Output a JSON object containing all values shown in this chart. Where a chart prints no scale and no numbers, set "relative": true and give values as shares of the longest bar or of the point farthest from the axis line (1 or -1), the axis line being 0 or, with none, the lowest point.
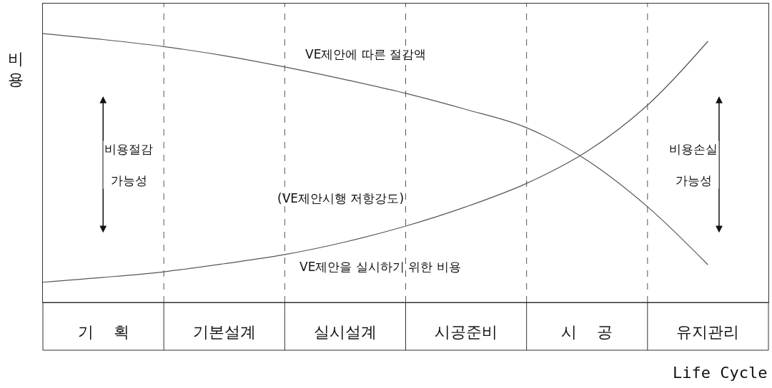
{
  "chart_data": {
    "type": "line",
    "relative": true,
    "xlabel": "Life Cycle",
    "ylabel": "비용",
    "categories": [
      null,
      "기    획",
      null,
      "기본설계",
      null,
      "실시설계",
      null,
      "시공준비",
      null,
      "시    공",
      null,
      "유지관리",
      null
    ],
    "series": [
      {
        "color": "#555555",
        "values": [
          1,
          0.978,
          0.952,
          0.918,
          0.876,
          0.829,
          0.778,
          0.718,
          0.65,
          0.529,
          0.356,
          0.14,
          null
        ]
      },
      {
        "color": "#555555",
        "values": [
          0.075,
          0.093,
          0.114,
          0.144,
          0.178,
          0.225,
          0.284,
          0.356,
          0.443,
          0.562,
          0.734,
          0.972,
          null
        ]
      }
    ],
    "annotations": [
      "VE제안에 따른 절감액",
      "(VE제안시행 저항강도)",
      "VE제안을 실시하기 위한 비용",
      "비용절감\n가능성",
      "비용손실\n가능성"
    ],
    "grid": "x",
    "marker": "none",
    "line_style": "solid"
  }
}
